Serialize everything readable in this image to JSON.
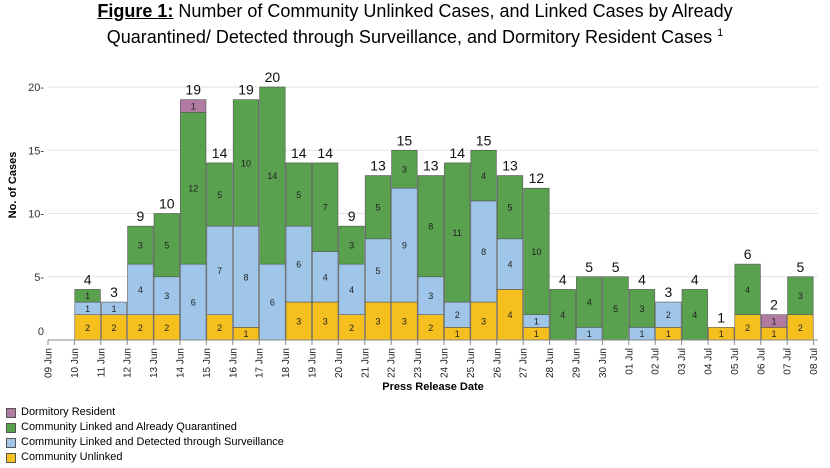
{
  "title": {
    "lead": "Figure 1:",
    "line1": " Number of Community Unlinked Cases, and Linked Cases by Already",
    "line2": "Quarantined/ Detected through Surveillance, and Dormitory Resident Cases",
    "footnote": "1"
  },
  "chart_data": {
    "type": "bar",
    "stacked": true,
    "xlabel": "Press Release Date",
    "ylabel": "No. of Cases",
    "ylim": [
      0,
      21
    ],
    "yticks": [
      0,
      5,
      10,
      15,
      20
    ],
    "ytick_labels": [
      "0",
      "5-",
      "10-",
      "15-",
      "20-"
    ],
    "gridlines": "horizontal",
    "legend_position": "bottom-left",
    "categories": [
      "09 Jun",
      "10 Jun",
      "11 Jun",
      "12 Jun",
      "13 Jun",
      "14 Jun",
      "15 Jun",
      "16 Jun",
      "17 Jun",
      "18 Jun",
      "19 Jun",
      "20 Jun",
      "21 Jun",
      "22 Jun",
      "23 Jun",
      "24 Jun",
      "25 Jun",
      "26 Jun",
      "27 Jun",
      "28 Jun",
      "29 Jun",
      "30 Jun",
      "01 Jul",
      "02 Jul",
      "03 Jul",
      "04 Jul",
      "05 Jul",
      "06 Jul",
      "07 Jul",
      "08 Jul"
    ],
    "series": [
      {
        "name": "Community Unlinked",
        "color": "#f5bf1e",
        "values": [
          0,
          2,
          2,
          2,
          2,
          0,
          2,
          1,
          0,
          3,
          3,
          2,
          3,
          3,
          2,
          1,
          3,
          4,
          1,
          0,
          0,
          0,
          0,
          1,
          0,
          1,
          2,
          1,
          2,
          0
        ]
      },
      {
        "name": "Community Linked and Detected through Surveillance",
        "color": "#9fc6e8",
        "values": [
          0,
          1,
          1,
          4,
          3,
          6,
          7,
          8,
          6,
          6,
          4,
          4,
          5,
          9,
          3,
          2,
          8,
          4,
          1,
          0,
          1,
          0,
          1,
          2,
          0,
          0,
          0,
          0,
          0,
          0
        ]
      },
      {
        "name": "Community Linked and Already Quarantined",
        "color": "#59a14f",
        "values": [
          0,
          1,
          0,
          3,
          5,
          12,
          5,
          10,
          14,
          5,
          7,
          3,
          5,
          3,
          8,
          11,
          4,
          5,
          10,
          4,
          4,
          5,
          3,
          0,
          4,
          0,
          4,
          0,
          3,
          0
        ]
      },
      {
        "name": "Dormitory Resident",
        "color": "#b07aa1",
        "values": [
          0,
          0,
          0,
          0,
          0,
          1,
          0,
          0,
          0,
          0,
          0,
          0,
          0,
          0,
          0,
          0,
          0,
          0,
          0,
          0,
          0,
          0,
          0,
          0,
          0,
          0,
          0,
          1,
          0,
          0
        ]
      }
    ],
    "totals": [
      null,
      4,
      3,
      9,
      10,
      19,
      14,
      19,
      20,
      14,
      14,
      9,
      13,
      15,
      13,
      14,
      15,
      13,
      12,
      4,
      5,
      5,
      4,
      3,
      4,
      1,
      6,
      2,
      5,
      null
    ]
  }
}
